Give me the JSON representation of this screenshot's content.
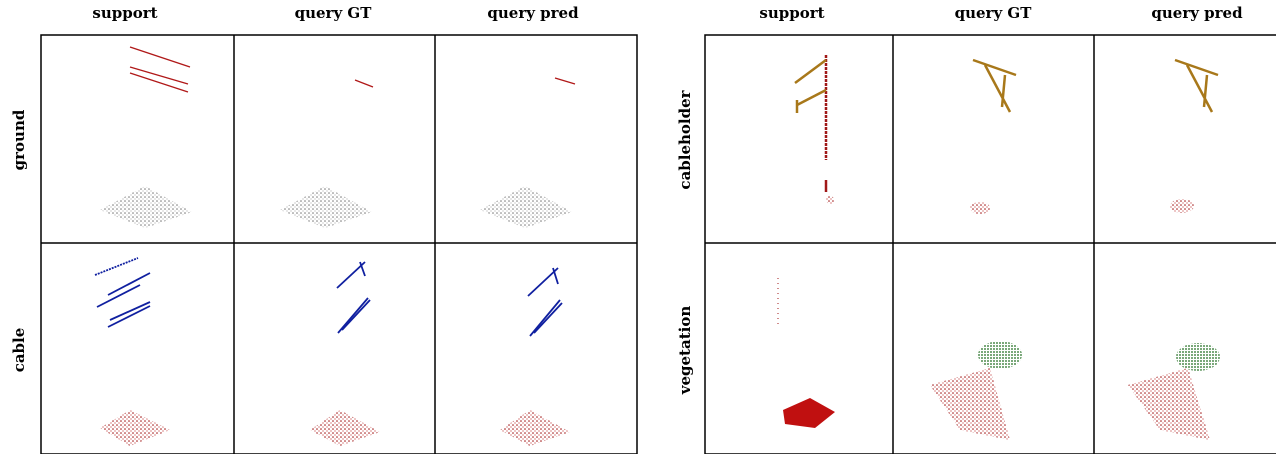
{
  "panels": [
    {
      "columns": [
        "support",
        "query GT",
        "query pred"
      ],
      "rows": [
        "ground",
        "cable"
      ]
    },
    {
      "columns": [
        "support",
        "query GT",
        "query pred"
      ],
      "rows": [
        "cableholder",
        "vegetation"
      ]
    }
  ]
}
